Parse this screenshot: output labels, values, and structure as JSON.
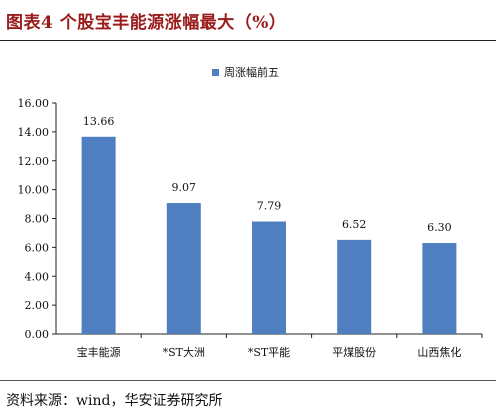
{
  "figure": {
    "title": "图表4 个股宝丰能源涨幅最大（%）",
    "source": "资料来源：wind，华安证券研究所"
  },
  "colors": {
    "bar": "#4f7fc0",
    "title": "#9a1b1b"
  },
  "chart_data": {
    "type": "bar",
    "categories": [
      "宝丰能源",
      "*ST大洲",
      "*ST平能",
      "平煤股份",
      "山西焦化"
    ],
    "series": [
      {
        "name": "周涨幅前五",
        "values": [
          13.66,
          9.07,
          7.79,
          6.52,
          6.3
        ]
      }
    ],
    "data_labels": [
      "13.66",
      "9.07",
      "7.79",
      "6.52",
      "6.30"
    ],
    "y_ticks": [
      "0.00",
      "2.00",
      "4.00",
      "6.00",
      "8.00",
      "10.00",
      "12.00",
      "14.00",
      "16.00"
    ],
    "ylim": [
      0,
      16
    ],
    "legend_position": "top-center",
    "grid": false
  }
}
